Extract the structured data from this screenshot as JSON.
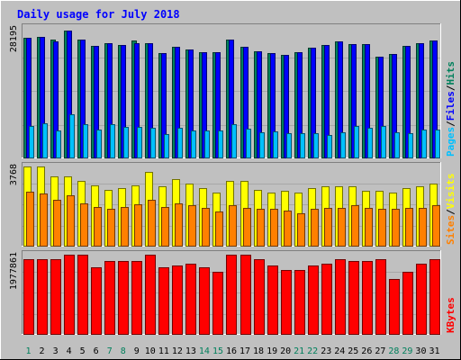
{
  "chart_data": {
    "type": "bar",
    "title": "Daily usage for July 2018",
    "categories": [
      "1",
      "2",
      "3",
      "4",
      "5",
      "6",
      "7",
      "8",
      "9",
      "10",
      "11",
      "12",
      "13",
      "14",
      "15",
      "16",
      "17",
      "18",
      "19",
      "20",
      "21",
      "22",
      "23",
      "24",
      "25",
      "26",
      "27",
      "28",
      "29",
      "30",
      "31"
    ],
    "weekend_days": [
      1,
      7,
      8,
      14,
      15,
      21,
      22,
      28,
      29
    ],
    "colors": {
      "hits": "#00805c",
      "files": "#0000ff",
      "pages": "#00c0ff",
      "visits": "#ffff00",
      "sites": "#ff8000",
      "kbytes": "#ff0000",
      "title": "#0000ff",
      "weekday_label": "#000000",
      "weekend_label": "#00805c"
    },
    "panels": [
      {
        "id": "hits-files-pages",
        "ymax_label": "28195",
        "ymax": 28195,
        "legend": [
          {
            "text": "Pages",
            "color": "#00c0ff"
          },
          {
            "text": "Files",
            "color": "#0000ff"
          },
          {
            "text": "Hits",
            "color": "#00805c"
          }
        ],
        "series": [
          {
            "name": "Hits",
            "color": "#00805c",
            "values": [
              26100,
              26200,
              25700,
              27600,
              25600,
              24200,
              24800,
              24400,
              25400,
              24900,
              22700,
              24000,
              23400,
              23000,
              22900,
              25600,
              24100,
              23100,
              22700,
              22400,
              23000,
              23900,
              24400,
              25300,
              24600,
              24700,
              21900,
              22500,
              24200,
              24900,
              25400
            ]
          },
          {
            "name": "Files",
            "color": "#0000ff",
            "values": [
              26100,
              26200,
              25300,
              27600,
              25600,
              24200,
              24800,
              24400,
              24900,
              24900,
              22700,
              24000,
              23400,
              23000,
              22900,
              25600,
              24100,
              23100,
              22700,
              22400,
              23000,
              23900,
              24400,
              25300,
              24600,
              24700,
              21900,
              22500,
              24200,
              24900,
              25400
            ]
          },
          {
            "name": "Pages",
            "color": "#00c0ff",
            "values": [
              6800,
              7400,
              5800,
              9400,
              7200,
              6100,
              7300,
              6700,
              6600,
              6500,
              5100,
              6400,
              5900,
              5800,
              5800,
              7300,
              6200,
              5400,
              5700,
              5200,
              5200,
              5200,
              4900,
              5400,
              6900,
              6500,
              6900,
              5400,
              5300,
              6000,
              6000
            ]
          }
        ]
      },
      {
        "id": "visits-sites",
        "ymax_label": "3768",
        "ymax": 3768,
        "legend": [
          {
            "text": "Sites",
            "color": "#ff8000"
          },
          {
            "text": "Visits",
            "color": "#ffff00"
          }
        ],
        "series": [
          {
            "name": "Visits",
            "color": "#ffff00",
            "values": [
              3768,
              3768,
              3300,
              3300,
              3090,
              2850,
              2640,
              2730,
              2850,
              3530,
              2830,
              3150,
              2940,
              2740,
              2520,
              3080,
              3070,
              2640,
              2530,
              2630,
              2530,
              2730,
              2830,
              2830,
              2830,
              2630,
              2630,
              2530,
              2730,
              2830,
              2940
            ]
          },
          {
            "name": "Sites",
            "color": "#ff8000",
            "values": [
              2580,
              2480,
              2170,
              2380,
              2020,
              1860,
              1750,
              1860,
              1960,
              2170,
              1830,
              2020,
              1910,
              1800,
              1640,
              1930,
              1810,
              1750,
              1750,
              1680,
              1550,
              1750,
              1800,
              1800,
              1910,
              1800,
              1750,
              1750,
              1790,
              1800,
              1910
            ]
          }
        ]
      },
      {
        "id": "kbytes",
        "ymax_label": "1977861",
        "ymax": 1977861,
        "legend": [
          {
            "text": "KBytes",
            "color": "#ff0000"
          }
        ],
        "series": [
          {
            "name": "KBytes",
            "color": "#ff0000",
            "values": [
              1874000,
              1874000,
              1874000,
              1977861,
              1977861,
              1652000,
              1812000,
              1812000,
              1812000,
              1977861,
              1652000,
              1707000,
              1762000,
              1652000,
              1541000,
              1977861,
              1977861,
              1874000,
              1707000,
              1597000,
              1597000,
              1707000,
              1762000,
              1874000,
              1812000,
              1812000,
              1874000,
              1372000,
              1541000,
              1762000,
              1874000
            ]
          }
        ]
      }
    ]
  }
}
